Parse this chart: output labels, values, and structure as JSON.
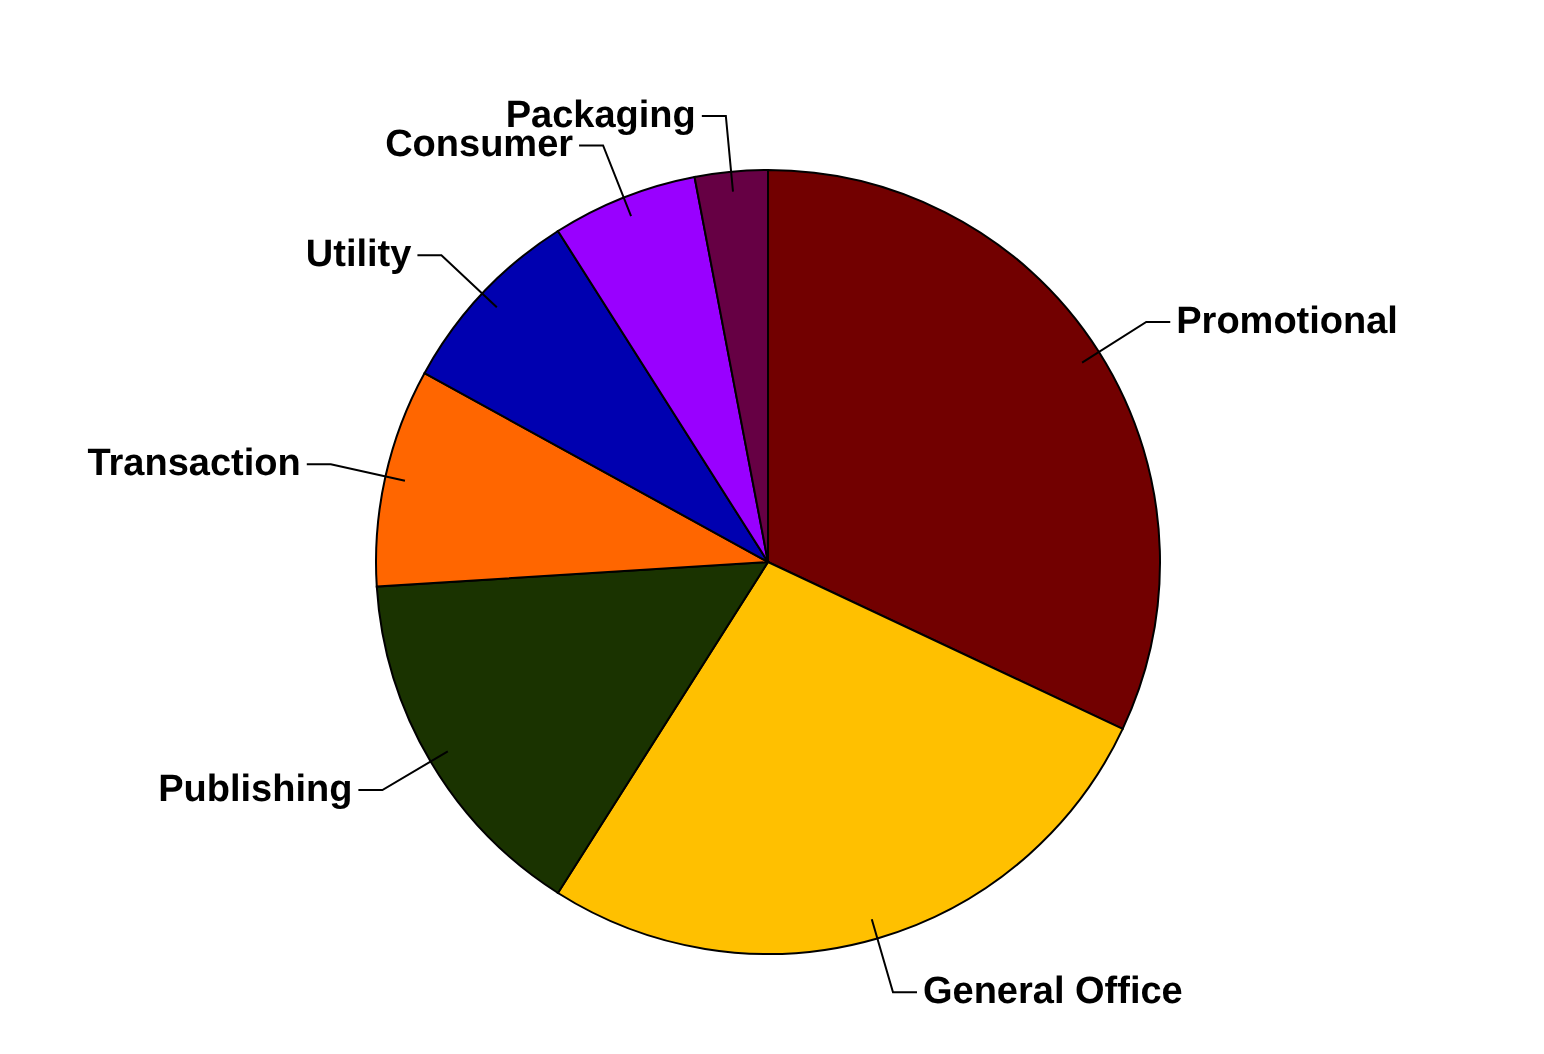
{
  "chart_data": {
    "type": "pie",
    "categories": [
      "Promotional",
      "General Office",
      "Publishing",
      "Transaction",
      "Utility",
      "Consumer",
      "Packaging"
    ],
    "values": [
      32,
      27,
      15,
      9,
      8,
      6,
      3
    ],
    "colors": [
      "#720000",
      "#ffc000",
      "#1a3300",
      "#ff6600",
      "#0000b0",
      "#9900ff",
      "#660044"
    ],
    "legend": false
  }
}
